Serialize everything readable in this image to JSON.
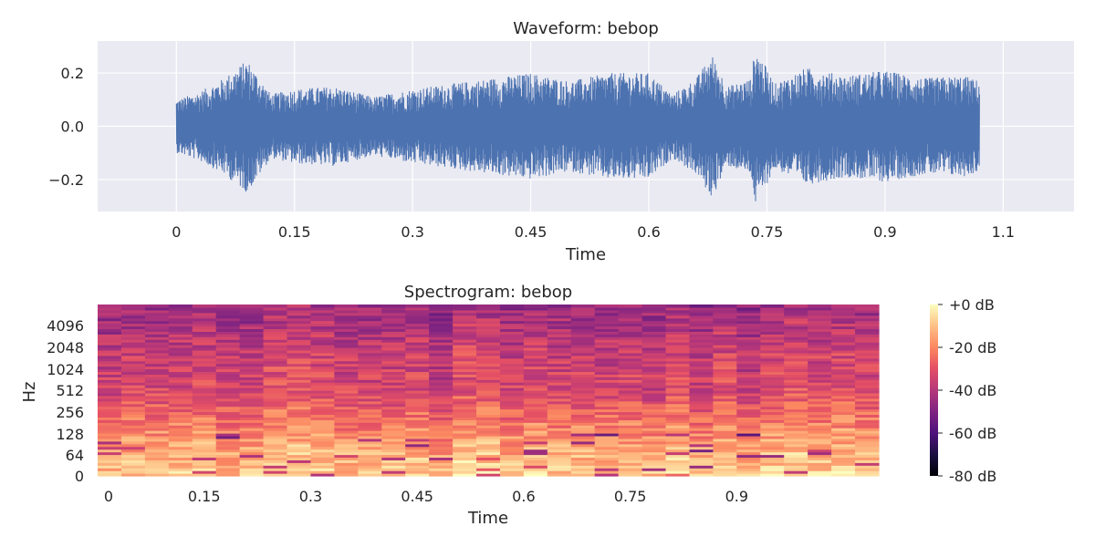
{
  "colors": {
    "axes_bg": "#EAEAF2",
    "grid": "#FFFFFF",
    "waveform_line": "#4C72B0",
    "text": "#262626"
  },
  "chart_data": [
    {
      "type": "line",
      "title": "Waveform: bebop",
      "xlabel": "Time",
      "ylabel": "",
      "xlim": [
        -0.1,
        1.14
      ],
      "ylim": [
        -0.32,
        0.32
      ],
      "x_ticks": [
        0,
        0.15,
        0.3,
        0.45,
        0.6,
        0.75,
        0.9,
        1.05
      ],
      "x_tick_labels": [
        "0",
        "0.15",
        "0.3",
        "0.45",
        "0.6",
        "0.75",
        "0.9",
        "1.1"
      ],
      "y_ticks": [
        0.2,
        0.0,
        -0.2
      ],
      "y_tick_labels": [
        "0.2",
        "0.0",
        "−0.2"
      ],
      "grid": true,
      "signal_duration": 1.02,
      "amplitude_envelope": {
        "x": [
          0,
          0.03,
          0.06,
          0.09,
          0.12,
          0.15,
          0.2,
          0.25,
          0.3,
          0.35,
          0.4,
          0.45,
          0.5,
          0.55,
          0.6,
          0.63,
          0.66,
          0.68,
          0.7,
          0.73,
          0.735,
          0.76,
          0.8,
          0.85,
          0.9,
          0.95,
          1.0,
          1.02
        ],
        "y": [
          0.1,
          0.13,
          0.18,
          0.25,
          0.12,
          0.14,
          0.15,
          0.11,
          0.14,
          0.16,
          0.18,
          0.2,
          0.17,
          0.2,
          0.2,
          0.12,
          0.18,
          0.27,
          0.15,
          0.18,
          0.3,
          0.16,
          0.22,
          0.19,
          0.21,
          0.18,
          0.19,
          0.17
        ]
      }
    },
    {
      "type": "heatmap",
      "title": "Spectrogram: bebop",
      "xlabel": "Time",
      "ylabel": "Hz",
      "xlim": [
        0,
        1.1
      ],
      "x_ticks": [
        0,
        0.15,
        0.3,
        0.45,
        0.6,
        0.75,
        0.9
      ],
      "x_tick_labels": [
        "0",
        "0.15",
        "0.3",
        "0.45",
        "0.6",
        "0.75",
        "0.9"
      ],
      "y_scale": "log",
      "y_ticks": [
        0,
        64,
        128,
        256,
        512,
        1024,
        2048,
        4096
      ],
      "y_tick_labels": [
        "0",
        "64",
        "128",
        "256",
        "512",
        "1024",
        "2048",
        "4096"
      ],
      "colormap": "magma",
      "colorbar": {
        "ticks": [
          0,
          -20,
          -40,
          -60,
          -80
        ],
        "labels": [
          "+0 dB",
          "-20 dB",
          "-40 dB",
          "-60 dB",
          "-80 dB"
        ],
        "range_db": [
          -80,
          0
        ]
      },
      "frames": 33,
      "freq_bins": 64,
      "db_profile_by_height": {
        "relative_height": [
          0.0,
          0.15,
          0.3,
          0.5,
          0.7,
          1.0
        ],
        "db": [
          -8,
          -14,
          -22,
          -33,
          -36,
          -45
        ]
      }
    }
  ]
}
